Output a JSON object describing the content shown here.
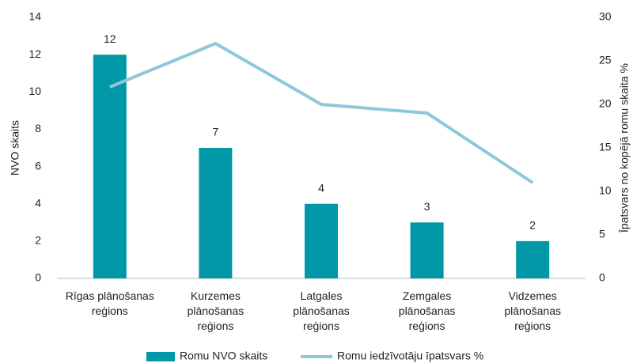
{
  "chart_data": {
    "type": "bar_line",
    "categories": [
      "Rīgas plānošanas reģions",
      "Kurzemes plānošanas reģions",
      "Latgales plānošanas reģions",
      "Zemgales plānošanas reģions",
      "Vidzemes plānošanas reģions"
    ],
    "series": [
      {
        "name": "Romu NVO skaits",
        "type": "bar",
        "color": "#0098a6",
        "values": [
          12,
          7,
          4,
          3,
          2
        ]
      },
      {
        "name": "Romu iedzīvotāju īpatsvars %",
        "type": "line",
        "axis": "y2",
        "color": "#8ec8d8",
        "values": [
          22,
          27,
          20,
          19,
          11
        ]
      }
    ],
    "y_label": "NVO skaits",
    "y2_label": "Īpatsvars no kopējā romu skaita %",
    "ylim": [
      0,
      14
    ],
    "yticks": [
      0,
      2,
      4,
      6,
      8,
      10,
      12,
      14
    ],
    "y2lim": [
      0,
      30
    ],
    "y2ticks": [
      0,
      5,
      10,
      15,
      20,
      25,
      30
    ],
    "legend": "bottom"
  }
}
